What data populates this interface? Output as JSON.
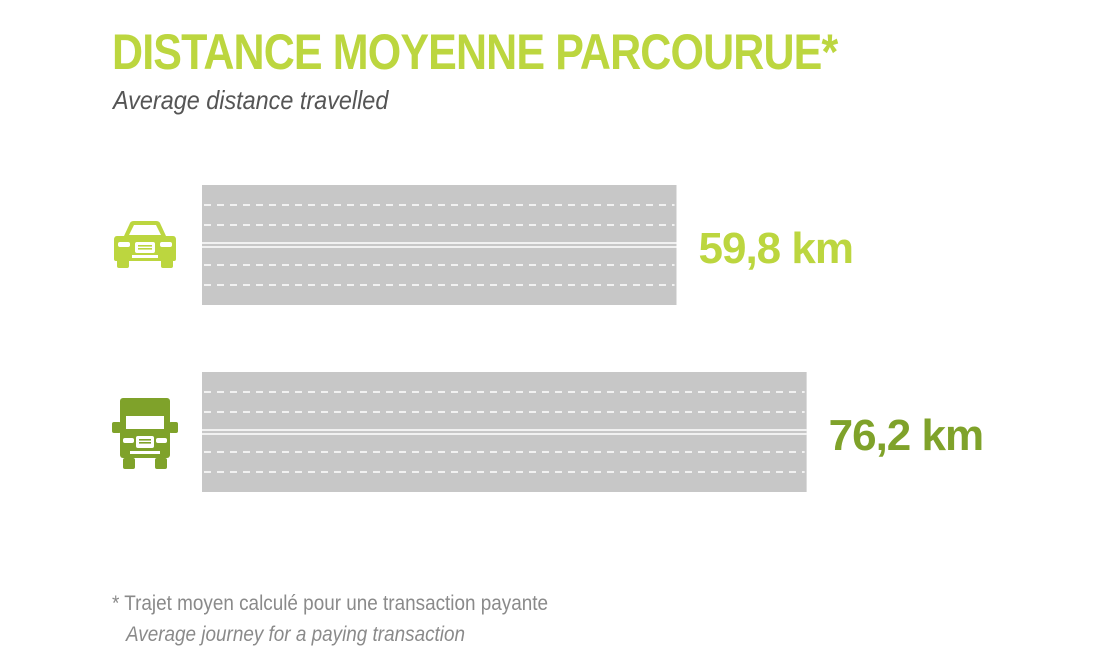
{
  "colors": {
    "title": "#bcd63f",
    "car": "#bcd63f",
    "truck": "#7fa22a",
    "road": "#c7c7c7",
    "lane_marking": "#ffffff"
  },
  "chart_data": {
    "type": "bar",
    "orientation": "horizontal",
    "title": "DISTANCE MOYENNE PARCOURUE*",
    "subtitle": "Average distance travelled",
    "categories": [
      "car-icon",
      "truck-icon"
    ],
    "values": [
      59.8,
      76.2
    ],
    "value_labels": [
      "59,8 km",
      "76,2 km"
    ],
    "unit": "km",
    "series_colors": [
      "#bcd63f",
      "#7fa22a"
    ],
    "grid": false,
    "legend": "none"
  },
  "footnote": {
    "fr": "* Trajet moyen calculé pour une transaction payante",
    "en": "Average journey for a paying transaction"
  }
}
